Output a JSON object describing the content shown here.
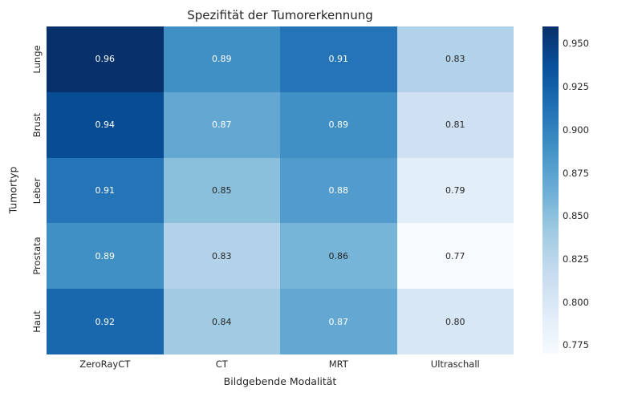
{
  "chart_data": {
    "type": "heatmap",
    "title": "Spezifität der Tumorerkennung",
    "xlabel": "Bildgebende Modalität",
    "ylabel": "Tumortyp",
    "x_categories": [
      "ZeroRayCT",
      "CT",
      "MRT",
      "Ultraschall"
    ],
    "y_categories": [
      "Lunge",
      "Brust",
      "Leber",
      "Prostata",
      "Haut"
    ],
    "values": [
      [
        0.96,
        0.89,
        0.91,
        0.83
      ],
      [
        0.94,
        0.87,
        0.89,
        0.81
      ],
      [
        0.91,
        0.85,
        0.88,
        0.79
      ],
      [
        0.89,
        0.83,
        0.86,
        0.77
      ],
      [
        0.92,
        0.84,
        0.87,
        0.8
      ]
    ],
    "vmin": 0.77,
    "vmax": 0.96,
    "colormap": "Blues",
    "colormap_anchors": [
      "#f7fbff",
      "#deebf7",
      "#c6dbef",
      "#9ecae1",
      "#6baed6",
      "#4292c6",
      "#2171b5",
      "#08519c",
      "#08306b"
    ],
    "colorbar_tick_labels": [
      "0.950",
      "0.925",
      "0.900",
      "0.875",
      "0.850",
      "0.825",
      "0.800",
      "0.775"
    ],
    "annotation_decimals": 2,
    "grid": false,
    "legend_position": "right-colorbar",
    "annotation_color_dark": "#262626",
    "annotation_color_light": "#ffffff",
    "background_color": "#ffffff"
  }
}
